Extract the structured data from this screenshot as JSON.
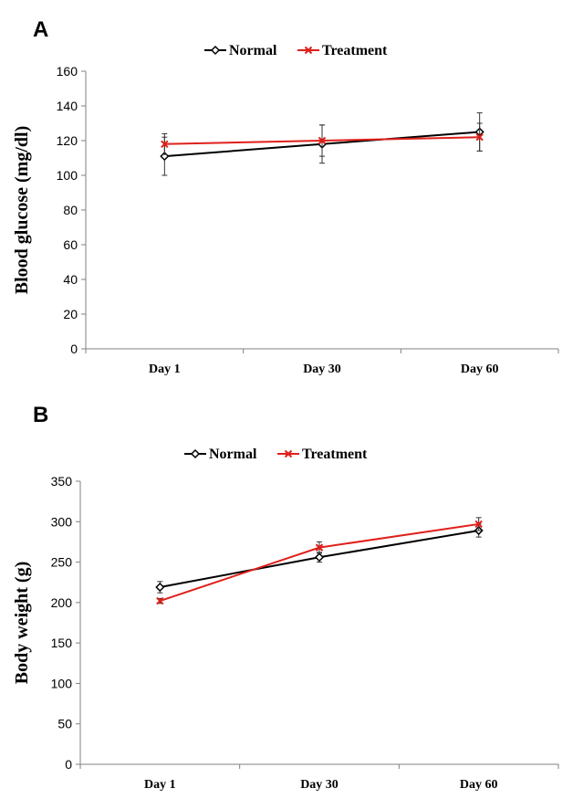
{
  "chart_data": [
    {
      "type": "line",
      "panel_label": "A",
      "categories": [
        "Day 1",
        "Day 30",
        "Day 60"
      ],
      "ylabel": "Blood glucose (mg/dl)",
      "xlabel": "",
      "ylim": [
        0,
        160
      ],
      "yticks": [
        0,
        20,
        40,
        60,
        80,
        100,
        120,
        140,
        160
      ],
      "legend_position": "top-center",
      "grid": false,
      "series": [
        {
          "name": "Normal",
          "color": "#000000",
          "marker": "diamond",
          "values": [
            111,
            118,
            125
          ],
          "errors": [
            11,
            11,
            11
          ]
        },
        {
          "name": "Treatment",
          "color": "#e0201b",
          "marker": "x",
          "values": [
            118,
            120,
            122
          ],
          "errors": [
            6,
            9,
            8
          ]
        }
      ]
    },
    {
      "type": "line",
      "panel_label": "B",
      "categories": [
        "Day 1",
        "Day 30",
        "Day 60"
      ],
      "ylabel": "Body weight (g)",
      "xlabel": "",
      "ylim": [
        0,
        350
      ],
      "yticks": [
        0,
        50,
        100,
        150,
        200,
        250,
        300,
        350
      ],
      "legend_position": "top-center",
      "grid": false,
      "series": [
        {
          "name": "Normal",
          "color": "#000000",
          "marker": "diamond",
          "values": [
            219,
            256,
            289
          ],
          "errors": [
            7,
            6,
            8
          ]
        },
        {
          "name": "Treatment",
          "color": "#e0201b",
          "marker": "x",
          "values": [
            202,
            268,
            297
          ],
          "errors": [
            3,
            7,
            8
          ]
        }
      ]
    }
  ]
}
